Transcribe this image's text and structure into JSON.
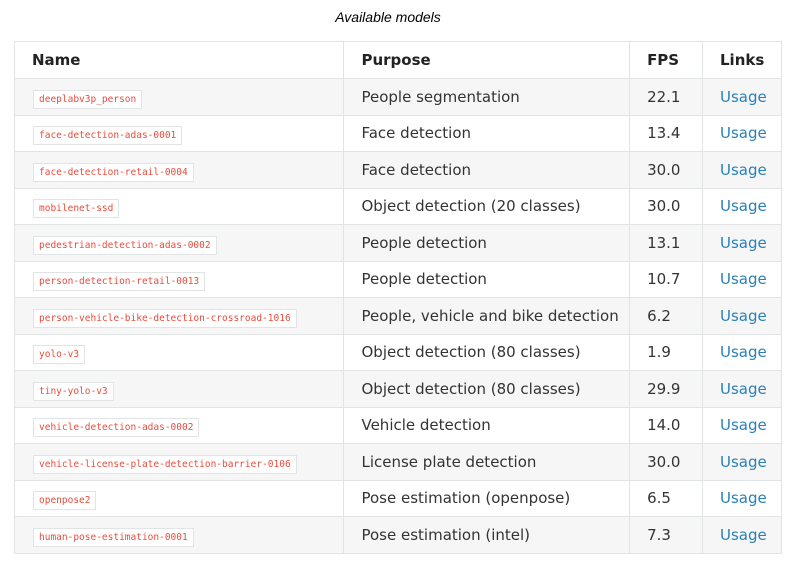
{
  "caption": "Available models",
  "table": {
    "headers": [
      "Name",
      "Purpose",
      "FPS",
      "Links"
    ],
    "rows": [
      [
        "deeplabv3p_person",
        "People segmentation",
        "22.1",
        "Usage"
      ],
      [
        "face-detection-adas-0001",
        "Face detection",
        "13.4",
        "Usage"
      ],
      [
        "face-detection-retail-0004",
        "Face detection",
        "30.0",
        "Usage"
      ],
      [
        "mobilenet-ssd",
        "Object detection (20 classes)",
        "30.0",
        "Usage"
      ],
      [
        "pedestrian-detection-adas-0002",
        "People detection",
        "13.1",
        "Usage"
      ],
      [
        "person-detection-retail-0013",
        "People detection",
        "10.7",
        "Usage"
      ],
      [
        "person-vehicle-bike-detection-crossroad-1016",
        "People, vehicle and bike detection",
        "6.2",
        "Usage"
      ],
      [
        "yolo-v3",
        "Object detection (80 classes)",
        "1.9",
        "Usage"
      ],
      [
        "tiny-yolo-v3",
        "Object detection (80 classes)",
        "29.9",
        "Usage"
      ],
      [
        "vehicle-detection-adas-0002",
        "Vehicle detection",
        "14.0",
        "Usage"
      ],
      [
        "vehicle-license-plate-detection-barrier-0106",
        "License plate detection",
        "30.0",
        "Usage"
      ],
      [
        "openpose2",
        "Pose estimation (openpose)",
        "6.5",
        "Usage"
      ],
      [
        "human-pose-estimation-0001",
        "Pose estimation (intel)",
        "7.3",
        "Usage"
      ]
    ]
  }
}
